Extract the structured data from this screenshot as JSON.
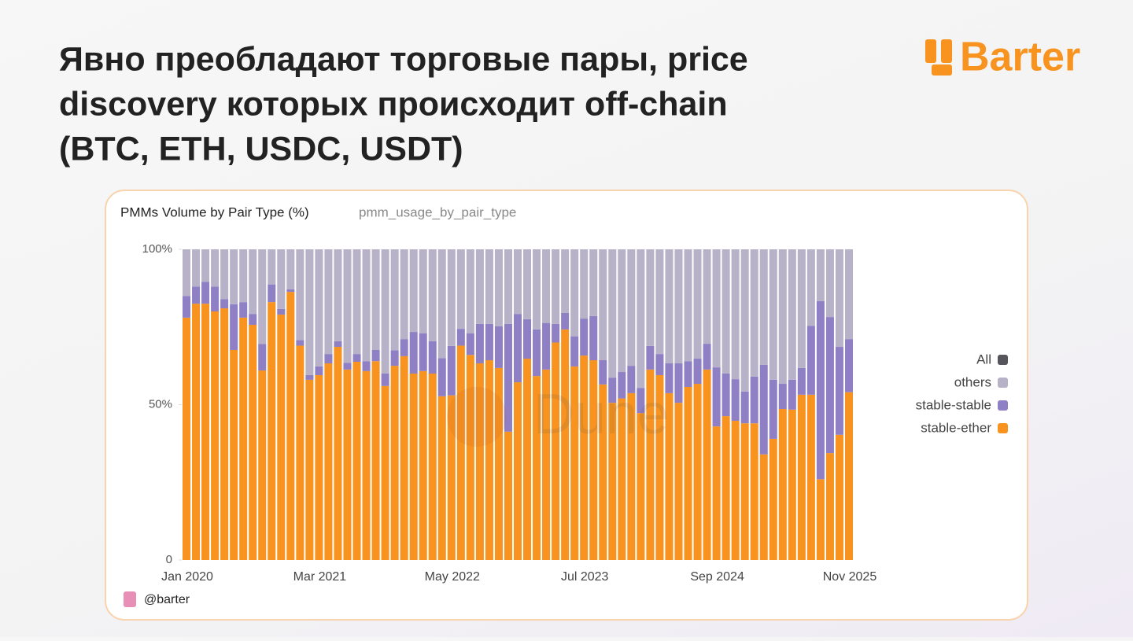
{
  "header": {
    "title_lines": [
      "Явно преобладают торговые пары, price",
      "discovery которых происходит off-chain",
      "(BTC, ETH, USDC, USDT)"
    ],
    "logo": "Barter"
  },
  "footer": {
    "handle": "@barter"
  },
  "watermark": "Dune",
  "chart_data": {
    "type": "stacked_bar",
    "title": "PMMs Volume by Pair Type (%)",
    "subtitle": "pmm_usage_by_pair_type",
    "categories": [
      "Jan 2020",
      null,
      null,
      null,
      null,
      null,
      null,
      null,
      null,
      null,
      null,
      null,
      null,
      null,
      "Mar 2021",
      null,
      null,
      null,
      null,
      null,
      null,
      null,
      null,
      null,
      null,
      null,
      null,
      null,
      "May 2022",
      null,
      null,
      null,
      null,
      null,
      null,
      null,
      null,
      null,
      null,
      null,
      null,
      null,
      "Jul 2023",
      null,
      null,
      null,
      null,
      null,
      null,
      null,
      null,
      null,
      null,
      null,
      null,
      null,
      "Sep 2024",
      null,
      null,
      null,
      null,
      null,
      null,
      null,
      null,
      null,
      null,
      null,
      null,
      null,
      "Nov 2025"
    ],
    "series": [
      {
        "name": "stable-ether",
        "color": "#f7931e",
        "values": [
          78,
          82.5,
          82.5,
          80,
          81,
          67.6,
          78,
          75.7,
          61,
          83,
          79,
          86.3,
          69,
          58,
          59.5,
          63.3,
          68.6,
          61.3,
          63.8,
          60.8,
          64,
          56,
          62.5,
          65.6,
          60,
          60.8,
          60,
          52.7,
          53,
          69,
          66,
          63.3,
          64.3,
          61.8,
          41.3,
          57.2,
          64.8,
          59.2,
          61.3,
          70,
          74.2,
          62.3,
          65.8,
          64.3,
          56.5,
          50.6,
          52,
          53.7,
          47.3,
          61.3,
          59.5,
          53.7,
          50.6,
          55.7,
          56.7,
          61.3,
          43,
          46.3,
          44.8,
          44,
          44,
          34,
          39,
          48.6,
          48.4,
          53.2,
          53.2,
          26,
          34.4,
          40.3,
          54
        ]
      },
      {
        "name": "stable-stable",
        "color": "#8f7fc4",
        "values": [
          7,
          5.5,
          7,
          8,
          3,
          14.7,
          5,
          3.5,
          8.5,
          5.7,
          1.8,
          0.8,
          1.8,
          1.5,
          2.8,
          3,
          1.8,
          2.2,
          2.5,
          3.2,
          3.6,
          4,
          5,
          5.5,
          13.4,
          12.2,
          10.4,
          12.3,
          15.9,
          5.4,
          7,
          12.7,
          11.7,
          13.4,
          34.7,
          22,
          12.7,
          15,
          15,
          6,
          5.3,
          9.7,
          11.9,
          14.2,
          7.8,
          8.1,
          8.5,
          8.8,
          8.1,
          7.6,
          6.8,
          9.6,
          12.7,
          8.3,
          8.1,
          8.3,
          19,
          13.7,
          13.4,
          10.2,
          15,
          28.8,
          19,
          8.1,
          9.6,
          8.6,
          22.2,
          57.3,
          43.8,
          28.3,
          17.1
        ]
      },
      {
        "name": "others",
        "color": "#b8b2c8",
        "values": [
          15,
          12,
          10.5,
          12,
          16,
          17.7,
          17,
          20.8,
          30.5,
          11.3,
          19.2,
          12.9,
          29.2,
          40.5,
          37.7,
          33.7,
          29.6,
          36.5,
          33.7,
          36,
          32.4,
          40,
          32.5,
          28.9,
          26.6,
          27,
          29.6,
          35,
          31.1,
          25.6,
          27,
          24,
          24,
          24.8,
          24,
          20.8,
          22.5,
          25.8,
          23.7,
          24,
          20.5,
          28,
          22.3,
          21.5,
          35.7,
          41.3,
          39.5,
          37.5,
          44.6,
          31.1,
          33.7,
          36.7,
          36.7,
          36,
          35.2,
          30.4,
          38,
          40,
          41.8,
          45.8,
          41,
          37.2,
          42,
          43.3,
          42,
          38.2,
          24.6,
          16.7,
          21.8,
          31.4,
          28.9
        ]
      }
    ],
    "legend_all": {
      "name": "All",
      "color": "#55555b"
    },
    "ylim": [
      0,
      100
    ],
    "yticks": [
      0,
      {
        "value": 50,
        "label": "50%"
      },
      {
        "value": 100,
        "label": "100%"
      }
    ],
    "legend": "right"
  }
}
